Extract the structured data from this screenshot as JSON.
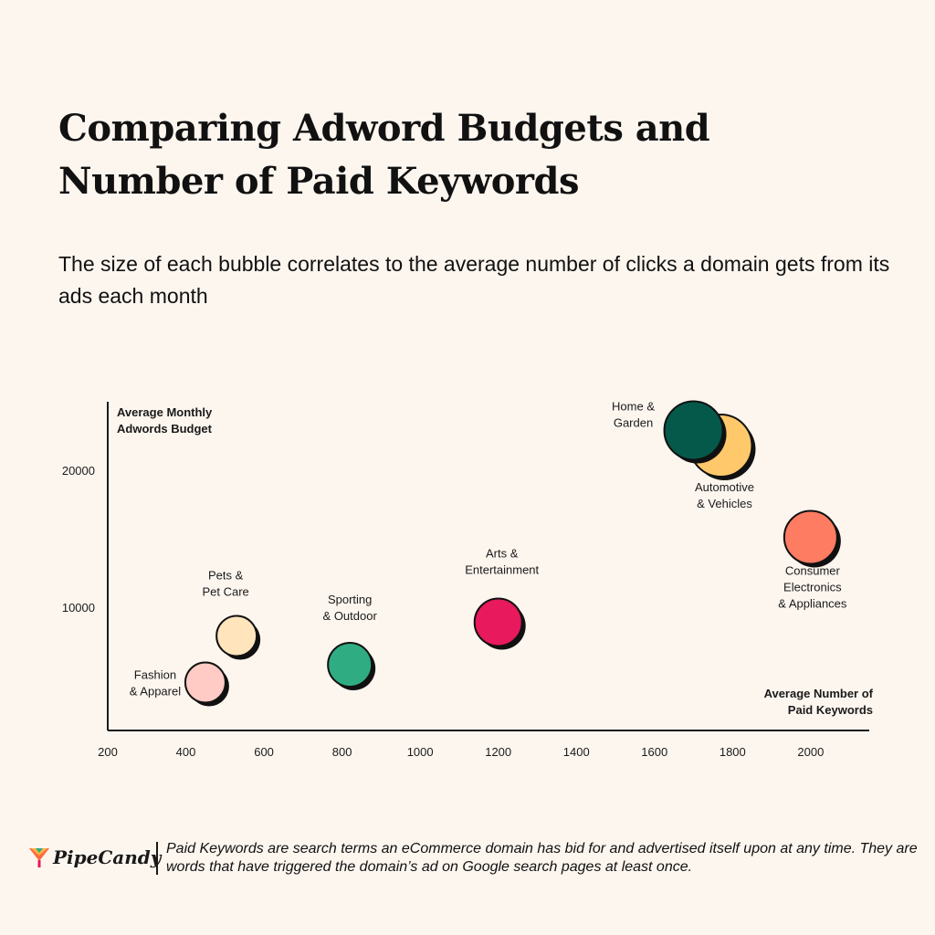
{
  "header": {
    "title": "Comparing Adword Budgets and Number of Paid Keywords",
    "subtitle": "The size of each bubble correlates to the average number of clicks a domain gets from its ads each month"
  },
  "chart_data": {
    "type": "scatter",
    "variant": "bubble",
    "title": "Comparing Adword Budgets and Number of Paid Keywords",
    "subtitle": "The size of each bubble correlates to the average number of clicks a domain gets from its ads each month",
    "xlabel_lines": [
      "Average Number of",
      "Paid Keywords"
    ],
    "ylabel_lines": [
      "Average Monthly",
      "Adwords Budget"
    ],
    "xlim": [
      200,
      2150
    ],
    "ylim": [
      1000,
      25000
    ],
    "x_ticks": [
      200,
      400,
      600,
      800,
      1000,
      1200,
      1400,
      1600,
      1800,
      2000
    ],
    "y_ticks": [
      10000,
      20000
    ],
    "grid": false,
    "points": [
      {
        "label_lines": [
          "Fashion",
          "& Apparel"
        ],
        "x": 450,
        "y": 4500,
        "color": "#ffcbc4"
      },
      {
        "label_lines": [
          "Pets &",
          "Pet Care"
        ],
        "x": 530,
        "y": 7900,
        "color": "#ffe4bc"
      },
      {
        "label_lines": [
          "Sporting",
          "& Outdoor"
        ],
        "x": 820,
        "y": 5800,
        "color": "#2fac82"
      },
      {
        "label_lines": [
          "Arts &",
          "Entertainment"
        ],
        "x": 1200,
        "y": 8900,
        "color": "#e8195c"
      },
      {
        "label_lines": [
          "Automotive",
          "& Vehicles"
        ],
        "x": 1770,
        "y": 21800,
        "color": "#ffc86a"
      },
      {
        "label_lines": [
          "Home &",
          "Garden"
        ],
        "x": 1700,
        "y": 22900,
        "color": "#05594a"
      },
      {
        "label_lines": [
          "Consumer",
          "Electronics",
          "& Appliances"
        ],
        "x": 2000,
        "y": 15100,
        "color": "#fe7c62"
      }
    ]
  },
  "footer": {
    "brand": "PipeCandy",
    "footnote": "Paid Keywords are search terms an eCommerce domain has bid for and advertised itself upon at any time. They are words that have triggered the domain’s ad on Google search pages at least once."
  }
}
